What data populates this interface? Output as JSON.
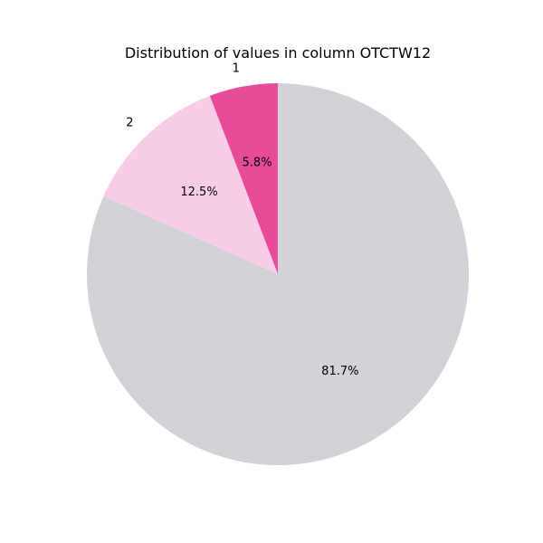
{
  "chart_data": {
    "type": "pie",
    "title": "Distribution of values in column OTCTW12",
    "slices": [
      {
        "label": "1",
        "value": 5.8,
        "pct_label": "5.8%",
        "color": "#e94b9b"
      },
      {
        "label": "2",
        "value": 12.5,
        "pct_label": "12.5%",
        "color": "#f9cde6"
      },
      {
        "label": "",
        "value": 81.7,
        "pct_label": "81.7%",
        "color": "#d1d3d9"
      }
    ],
    "start_angle": "top",
    "direction": "counterclockwise",
    "legend": "none"
  }
}
